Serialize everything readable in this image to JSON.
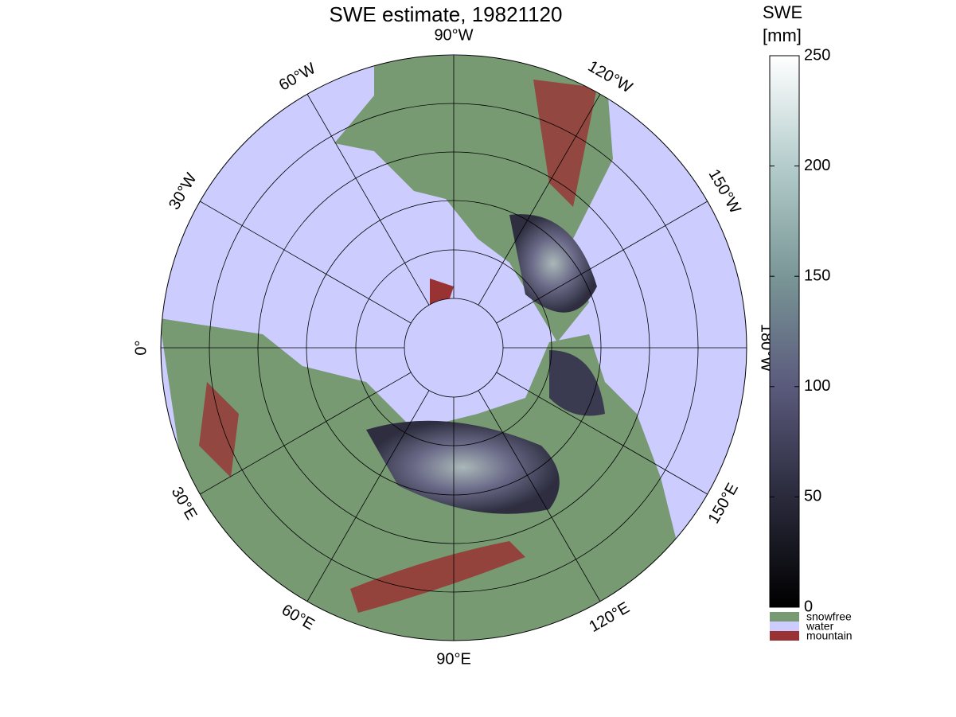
{
  "title": "SWE estimate, 19821120",
  "longitude_labels": [
    "90°W",
    "120°W",
    "150°W",
    "180°W",
    "150°E",
    "120°E",
    "90°E",
    "60°E",
    "30°E",
    "0°",
    "30°W",
    "60°W"
  ],
  "colorbar": {
    "title": [
      "SWE",
      "[mm]"
    ],
    "lim": [
      0,
      250
    ],
    "ticks": [
      0,
      50,
      100,
      150,
      200,
      250
    ]
  },
  "legend": [
    {
      "label": "snowfree",
      "color": "#779a73"
    },
    {
      "label": "water",
      "color": "#ccccff"
    },
    {
      "label": "mountain",
      "color": "#993333"
    }
  ]
}
